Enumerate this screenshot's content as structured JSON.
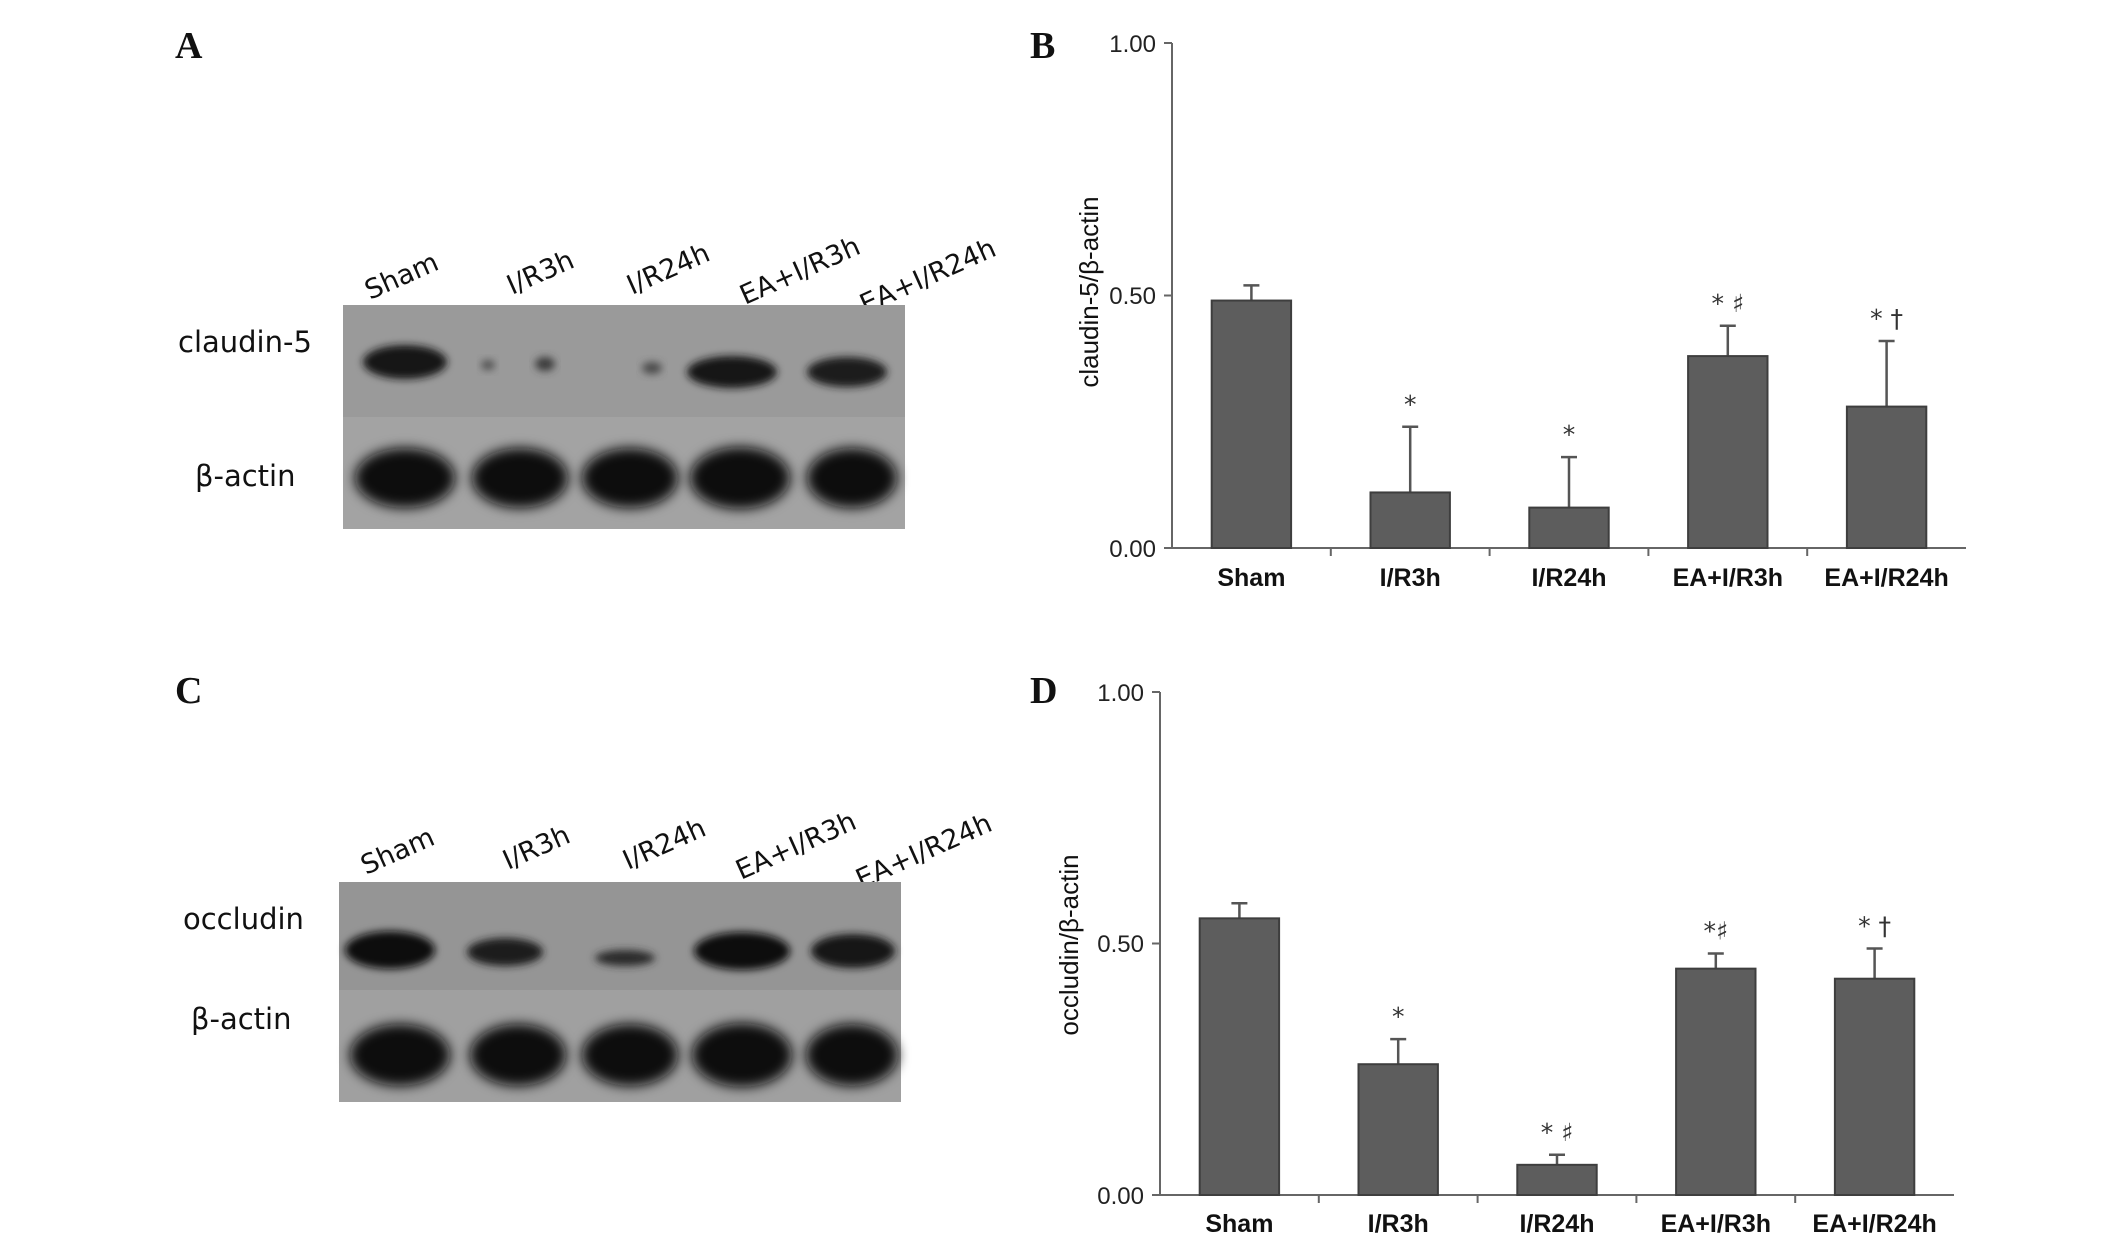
{
  "panels": {
    "a": "A",
    "b": "B",
    "c": "C",
    "d": "D"
  },
  "blots": [
    {
      "lanes": [
        "Sham",
        "I/R3h",
        "I/R24h",
        "EA+I/R3h",
        "EA+I/R24h"
      ],
      "protein": "claudin-5",
      "control": "β-actin"
    },
    {
      "lanes": [
        "Sham",
        "I/R3h",
        "I/R24h",
        "EA+I/R3h",
        "EA+I/R24h"
      ],
      "protein": "occludin",
      "control": "β-actin"
    }
  ],
  "chart_data": [
    {
      "type": "bar",
      "categories": [
        "Sham",
        "I/R3h",
        "I/R24h",
        "EA+I/R3h",
        "EA+I/R24h"
      ],
      "values": [
        0.49,
        0.11,
        0.08,
        0.38,
        0.28
      ],
      "errors": [
        0.03,
        0.13,
        0.1,
        0.06,
        0.13
      ],
      "annotations": [
        "",
        "*",
        "*",
        "* ♯",
        "* †"
      ],
      "ylabel": "claudin-5/β-actin",
      "ylim": [
        0,
        1.0
      ],
      "yticks": [
        "0.00",
        "0.50",
        "1.00"
      ],
      "bar_color": "#5d5d5d"
    },
    {
      "type": "bar",
      "categories": [
        "Sham",
        "I/R3h",
        "I/R24h",
        "EA+I/R3h",
        "EA+I/R24h"
      ],
      "values": [
        0.55,
        0.26,
        0.06,
        0.45,
        0.43
      ],
      "errors": [
        0.03,
        0.05,
        0.02,
        0.03,
        0.06
      ],
      "annotations": [
        "",
        "*",
        "* ♯",
        "*♯",
        "* †"
      ],
      "ylabel": "occludin/β-actin",
      "ylim": [
        0,
        1.0
      ],
      "yticks": [
        "0.00",
        "0.50",
        "1.00"
      ],
      "bar_color": "#5d5d5d"
    }
  ]
}
